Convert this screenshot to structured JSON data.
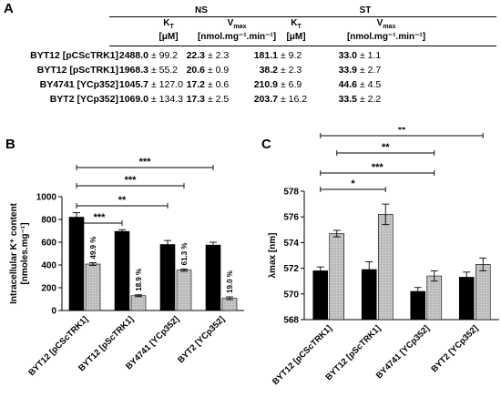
{
  "table": {
    "panel_label": "A",
    "group_headers": [
      "NS",
      "ST"
    ],
    "column_headers": [
      {
        "top": "K",
        "sub": "T",
        "unit": "[μM]"
      },
      {
        "top": "V",
        "sub": "max",
        "unit": "[nmol.mg⁻¹.min⁻¹]"
      },
      {
        "top": "K",
        "sub": "T",
        "unit": "[μM]"
      },
      {
        "top": "V",
        "sub": "max",
        "unit": "[nmol.mg⁻¹.min⁻¹]"
      }
    ],
    "rows": [
      {
        "strain": "BYT12 [pCScTRK1]",
        "cells": [
          [
            "2488.0",
            "± 99.2"
          ],
          [
            "22.3",
            "± 2.3"
          ],
          [
            "181.1",
            "± 9.2"
          ],
          [
            "33.0",
            "± 1.1"
          ]
        ]
      },
      {
        "strain": "BYT12 [pScTRK1]",
        "cells": [
          [
            "1968.3",
            "± 55.2"
          ],
          [
            "20.6",
            "± 0.9"
          ],
          [
            "38.2",
            "± 2.3"
          ],
          [
            "33.9",
            "± 2.7"
          ]
        ]
      },
      {
        "strain": "BY4741 [YCp352]",
        "cells": [
          [
            "1045.7",
            "± 127.0"
          ],
          [
            "17.2",
            "± 0.6"
          ],
          [
            "210.9",
            "± 6.9"
          ],
          [
            "44.6",
            "± 4.5"
          ]
        ]
      },
      {
        "strain": "BYT2 [YCp352]",
        "cells": [
          [
            "1069.0",
            "± 134.3"
          ],
          [
            "17.3",
            "± 2.5"
          ],
          [
            "203.7",
            "± 16.2"
          ],
          [
            "33.5",
            "± 2.2"
          ]
        ]
      }
    ]
  },
  "chart_data": [
    {
      "panel": "B",
      "type": "bar",
      "ylabel_line1": "Intracellular K⁺ content",
      "ylabel_line2": "[nmoles.mg⁻¹]",
      "ylim": [
        0,
        1000
      ],
      "yticks": [
        0,
        200,
        400,
        600,
        800,
        1000
      ],
      "categories": [
        "BYT12 [pCScTRK1]",
        "BYT12 [pScTRK1]",
        "BY4741 [YCp352]",
        "BYT2 [YCp352]"
      ],
      "series": [
        {
          "values": [
            820,
            695,
            580,
            575
          ],
          "errors": [
            40,
            15,
            35,
            25
          ],
          "color": "#000000"
        },
        {
          "values": [
            408,
            130,
            355,
            108
          ],
          "errors": [
            12,
            8,
            10,
            12
          ],
          "color": "#bdbdbd",
          "labels": [
            "49.9 %",
            "18.9 %",
            "61.3 %",
            "19.0 %"
          ]
        }
      ],
      "significance": [
        {
          "from": 0,
          "to": 1,
          "label": "***"
        },
        {
          "from": 0,
          "to": 2,
          "label": "**"
        },
        {
          "from": 0,
          "to": 3,
          "label": "***"
        },
        {
          "from": 0,
          "to": 2,
          "label": "***"
        }
      ]
    },
    {
      "panel": "C",
      "type": "bar",
      "ylabel": "λmax [nm]",
      "ylim": [
        568,
        578
      ],
      "yticks": [
        568,
        570,
        572,
        574,
        576,
        578
      ],
      "categories": [
        "BYT12 [pCScTRK1]",
        "BYT12 [pScTRK1]",
        "BY4741 [YCp352]",
        "BYT2 [YCp352]"
      ],
      "series": [
        {
          "values": [
            571.8,
            571.9,
            570.2,
            571.3
          ],
          "errors": [
            0.3,
            0.6,
            0.3,
            0.4
          ],
          "color": "#000000"
        },
        {
          "values": [
            574.7,
            576.2,
            571.4,
            572.3
          ],
          "errors": [
            0.25,
            0.8,
            0.4,
            0.5
          ],
          "color": "#bdbdbd"
        }
      ],
      "significance": [
        {
          "from": 0,
          "to": 1,
          "label": "*"
        },
        {
          "from": 0,
          "to": 2,
          "label": "***"
        },
        {
          "from": 0,
          "to": 2,
          "label": "**"
        },
        {
          "from": 0,
          "to": 3,
          "label": "**"
        }
      ]
    }
  ]
}
